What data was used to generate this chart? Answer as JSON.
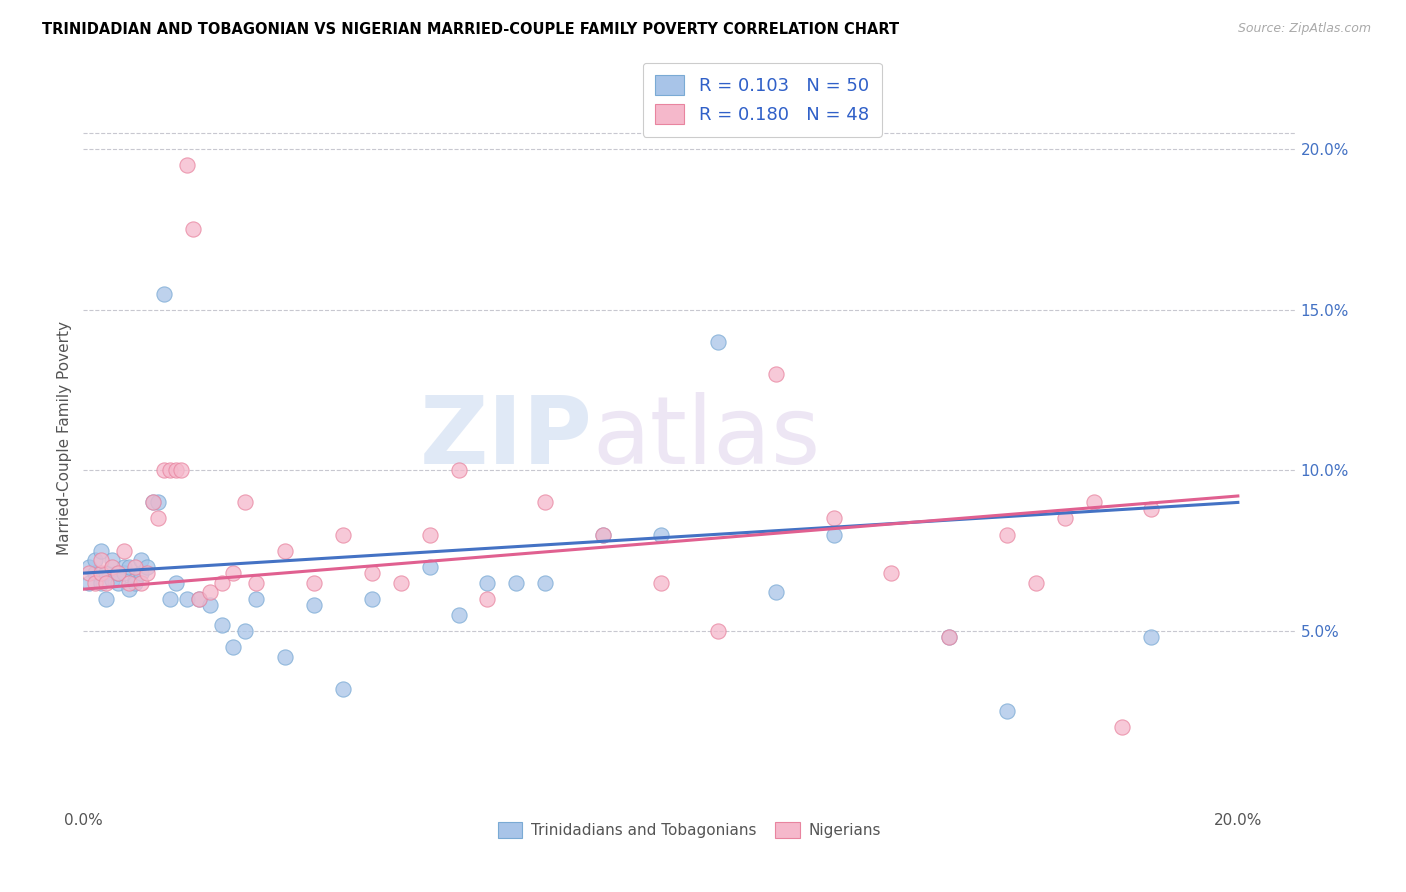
{
  "title": "TRINIDADIAN AND TOBAGONIAN VS NIGERIAN MARRIED-COUPLE FAMILY POVERTY CORRELATION CHART",
  "source": "Source: ZipAtlas.com",
  "ylabel": "Married-Couple Family Poverty",
  "xlim": [
    0.0,
    0.21
  ],
  "ylim": [
    -0.005,
    0.225
  ],
  "watermark_zip": "ZIP",
  "watermark_atlas": "atlas",
  "blue_color": "#a8c4e8",
  "blue_edge_color": "#7aaad4",
  "pink_color": "#f5b8cb",
  "pink_edge_color": "#e8849f",
  "blue_line_color": "#4472c4",
  "pink_line_color": "#e06090",
  "legend_text_color": "#3060c8",
  "legend_bold_color": "#2244bb",
  "right_tick_color": "#4472c4",
  "trinidadian_x": [
    0.001,
    0.001,
    0.002,
    0.002,
    0.003,
    0.003,
    0.004,
    0.004,
    0.005,
    0.005,
    0.006,
    0.006,
    0.007,
    0.007,
    0.008,
    0.008,
    0.009,
    0.009,
    0.01,
    0.01,
    0.011,
    0.012,
    0.013,
    0.014,
    0.015,
    0.016,
    0.018,
    0.02,
    0.022,
    0.024,
    0.026,
    0.028,
    0.03,
    0.035,
    0.04,
    0.045,
    0.05,
    0.06,
    0.065,
    0.07,
    0.075,
    0.08,
    0.09,
    0.1,
    0.11,
    0.12,
    0.13,
    0.15,
    0.16,
    0.185
  ],
  "trinidadian_y": [
    0.07,
    0.065,
    0.068,
    0.072,
    0.065,
    0.075,
    0.068,
    0.06,
    0.072,
    0.066,
    0.065,
    0.068,
    0.07,
    0.068,
    0.063,
    0.07,
    0.066,
    0.065,
    0.068,
    0.072,
    0.07,
    0.09,
    0.09,
    0.155,
    0.06,
    0.065,
    0.06,
    0.06,
    0.058,
    0.052,
    0.045,
    0.05,
    0.06,
    0.042,
    0.058,
    0.032,
    0.06,
    0.07,
    0.055,
    0.065,
    0.065,
    0.065,
    0.08,
    0.08,
    0.14,
    0.062,
    0.08,
    0.048,
    0.025,
    0.048
  ],
  "nigerian_x": [
    0.001,
    0.002,
    0.003,
    0.003,
    0.004,
    0.005,
    0.006,
    0.007,
    0.008,
    0.009,
    0.01,
    0.011,
    0.012,
    0.013,
    0.014,
    0.015,
    0.016,
    0.017,
    0.018,
    0.019,
    0.02,
    0.022,
    0.024,
    0.026,
    0.028,
    0.03,
    0.035,
    0.04,
    0.045,
    0.05,
    0.055,
    0.06,
    0.065,
    0.07,
    0.08,
    0.09,
    0.1,
    0.11,
    0.12,
    0.13,
    0.14,
    0.15,
    0.16,
    0.165,
    0.17,
    0.175,
    0.18,
    0.185
  ],
  "nigerian_y": [
    0.068,
    0.065,
    0.068,
    0.072,
    0.065,
    0.07,
    0.068,
    0.075,
    0.065,
    0.07,
    0.065,
    0.068,
    0.09,
    0.085,
    0.1,
    0.1,
    0.1,
    0.1,
    0.195,
    0.175,
    0.06,
    0.062,
    0.065,
    0.068,
    0.09,
    0.065,
    0.075,
    0.065,
    0.08,
    0.068,
    0.065,
    0.08,
    0.1,
    0.06,
    0.09,
    0.08,
    0.065,
    0.05,
    0.13,
    0.085,
    0.068,
    0.048,
    0.08,
    0.065,
    0.085,
    0.09,
    0.02,
    0.088
  ],
  "tri_line_x0": 0.0,
  "tri_line_x1": 0.2,
  "tri_line_y0": 0.068,
  "tri_line_y1": 0.09,
  "nig_line_x0": 0.0,
  "nig_line_x1": 0.2,
  "nig_line_y0": 0.063,
  "nig_line_y1": 0.092
}
